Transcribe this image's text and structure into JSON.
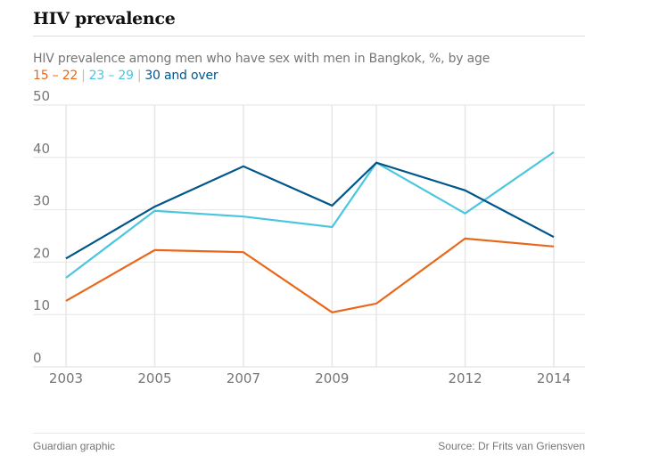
{
  "header": {
    "title": "HIV prevalence",
    "subtitle": "HIV prevalence among men who have sex with men in Bangkok, %, by age"
  },
  "legend": [
    {
      "label": "15 – 22",
      "color": "#e8681a"
    },
    {
      "label": "23 – 29",
      "color": "#4bc6df"
    },
    {
      "label": "30 and over",
      "color": "#005689"
    }
  ],
  "legend_separator": "|",
  "footer": {
    "credit": "Guardian graphic",
    "source": "Source: Dr Frits van Griensven"
  },
  "chart_data": {
    "type": "line",
    "title": "HIV prevalence",
    "subtitle": "HIV prevalence among men who have sex with men in Bangkok, %, by age",
    "xlabel": "",
    "ylabel": "",
    "x": [
      2003,
      2005,
      2007,
      2009,
      2010,
      2012,
      2014
    ],
    "x_ticks": [
      2003,
      2005,
      2007,
      2009,
      2012,
      2014
    ],
    "x_gridlines": [
      2003,
      2005,
      2007,
      2009,
      2010,
      2012,
      2014
    ],
    "xlim": [
      2003,
      2014
    ],
    "ylim": [
      0,
      50
    ],
    "y_ticks": [
      0,
      10,
      20,
      30,
      40,
      50
    ],
    "grid": true,
    "legend_position": "top-left",
    "series": [
      {
        "name": "15 – 22",
        "color": "#e8681a",
        "values": [
          12.6,
          22.3,
          21.9,
          10.4,
          12.1,
          24.5,
          23.0
        ]
      },
      {
        "name": "23 – 29",
        "color": "#4bc6df",
        "values": [
          17.0,
          29.8,
          28.7,
          26.7,
          39.0,
          29.3,
          41.0
        ]
      },
      {
        "name": "30 and over",
        "color": "#005689",
        "values": [
          20.7,
          30.6,
          38.3,
          30.8,
          39.0,
          33.7,
          24.8
        ]
      }
    ],
    "colors": {
      "grid": "#e6e6e6",
      "tick_label": "#767676"
    }
  }
}
